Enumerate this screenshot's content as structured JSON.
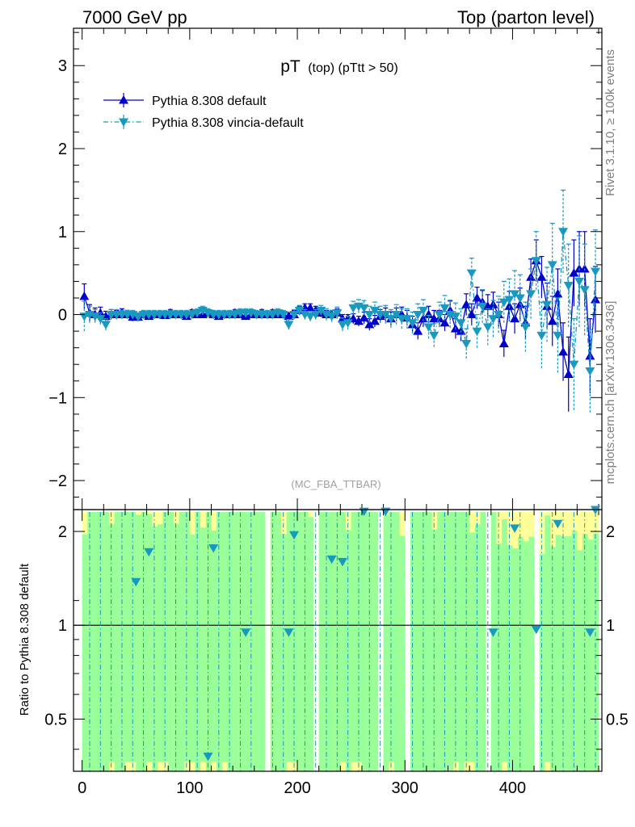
{
  "header": {
    "left": "7000 GeV pp",
    "right": "Top (parton level)"
  },
  "side_labels": {
    "rivet": "Rivet 3.1.10, ≥ 100k events",
    "mcplots": "mcplots.cern.ch [arXiv:1306.3436]"
  },
  "chart_data": [
    {
      "type": "line",
      "panel": "main",
      "title_main": "pT",
      "title_sub": "(top) (pTtt > 50)",
      "watermark": "(MC_FBA_TTBAR)",
      "xlim": [
        -8,
        483
      ],
      "ylim": [
        -2.35,
        3.45
      ],
      "yticks": [
        -2,
        -1,
        0,
        1,
        2,
        3
      ],
      "ytick_labels": [
        "−2",
        "−1",
        "0",
        "1",
        "2",
        "3"
      ],
      "legend_position": "top-left",
      "series": [
        {
          "name": "Pythia 8.308 default",
          "color": "#0000cc",
          "marker": "triangle-up",
          "line": "solid",
          "points": [
            [
              2,
              0.22,
              0.15
            ],
            [
              7,
              0.02,
              0.1
            ],
            [
              12,
              0.0,
              0.08
            ],
            [
              17,
              0.02,
              0.07
            ],
            [
              22,
              -0.02,
              0.06
            ],
            [
              27,
              0.0,
              0.06
            ],
            [
              32,
              0.0,
              0.05
            ],
            [
              37,
              0.02,
              0.05
            ],
            [
              42,
              0.0,
              0.05
            ],
            [
              47,
              -0.03,
              0.05
            ],
            [
              52,
              -0.03,
              0.05
            ],
            [
              57,
              0.0,
              0.04
            ],
            [
              62,
              -0.02,
              0.04
            ],
            [
              67,
              0.0,
              0.04
            ],
            [
              72,
              0.0,
              0.04
            ],
            [
              77,
              -0.01,
              0.04
            ],
            [
              82,
              0.02,
              0.04
            ],
            [
              87,
              0.0,
              0.04
            ],
            [
              92,
              0.0,
              0.04
            ],
            [
              97,
              -0.02,
              0.04
            ],
            [
              102,
              0.02,
              0.04
            ],
            [
              107,
              0.0,
              0.04
            ],
            [
              112,
              0.0,
              0.04
            ],
            [
              117,
              0.02,
              0.04
            ],
            [
              122,
              0.0,
              0.04
            ],
            [
              127,
              -0.02,
              0.04
            ],
            [
              132,
              0.0,
              0.04
            ],
            [
              137,
              0.0,
              0.04
            ],
            [
              142,
              0.02,
              0.04
            ],
            [
              147,
              0.0,
              0.04
            ],
            [
              152,
              -0.02,
              0.04
            ],
            [
              157,
              0.0,
              0.04
            ],
            [
              162,
              0.0,
              0.04
            ],
            [
              167,
              0.02,
              0.04
            ],
            [
              172,
              0.0,
              0.04
            ],
            [
              177,
              0.02,
              0.04
            ],
            [
              182,
              0.0,
              0.04
            ],
            [
              187,
              0.0,
              0.04
            ],
            [
              192,
              -0.02,
              0.04
            ],
            [
              197,
              0.0,
              0.05
            ],
            [
              202,
              0.05,
              0.05
            ],
            [
              207,
              0.08,
              0.05
            ],
            [
              212,
              0.08,
              0.05
            ],
            [
              217,
              0.05,
              0.05
            ],
            [
              222,
              0.02,
              0.05
            ],
            [
              227,
              0.0,
              0.05
            ],
            [
              232,
              0.0,
              0.05
            ],
            [
              237,
              0.02,
              0.05
            ],
            [
              242,
              -0.05,
              0.05
            ],
            [
              247,
              -0.05,
              0.05
            ],
            [
              252,
              -0.05,
              0.06
            ],
            [
              257,
              -0.08,
              0.06
            ],
            [
              262,
              -0.04,
              0.07
            ],
            [
              267,
              -0.12,
              0.07
            ],
            [
              272,
              -0.08,
              0.07
            ],
            [
              277,
              -0.02,
              0.08
            ],
            [
              282,
              0.0,
              0.08
            ],
            [
              287,
              -0.05,
              0.08
            ],
            [
              292,
              0.0,
              0.08
            ],
            [
              297,
              0.0,
              0.09
            ],
            [
              302,
              -0.04,
              0.09
            ],
            [
              307,
              -0.12,
              0.1
            ],
            [
              312,
              -0.2,
              0.1
            ],
            [
              317,
              -0.05,
              0.1
            ],
            [
              322,
              0.0,
              0.1
            ],
            [
              327,
              -0.05,
              0.1
            ],
            [
              332,
              -0.05,
              0.1
            ],
            [
              337,
              -0.1,
              0.1
            ],
            [
              342,
              0.05,
              0.12
            ],
            [
              347,
              -0.17,
              0.12
            ],
            [
              352,
              -0.2,
              0.12
            ],
            [
              357,
              0.12,
              0.13
            ],
            [
              362,
              0.0,
              0.13
            ],
            [
              367,
              0.2,
              0.13
            ],
            [
              372,
              0.15,
              0.14
            ],
            [
              377,
              0.1,
              0.14
            ],
            [
              382,
              0.12,
              0.15
            ],
            [
              387,
              0.0,
              0.15
            ],
            [
              392,
              -0.35,
              0.16
            ],
            [
              397,
              0.1,
              0.18
            ],
            [
              402,
              -0.05,
              0.18
            ],
            [
              407,
              0.12,
              0.2
            ],
            [
              412,
              -0.1,
              0.2
            ],
            [
              417,
              0.45,
              0.22
            ],
            [
              422,
              0.65,
              0.25
            ],
            [
              427,
              0.45,
              0.25
            ],
            [
              432,
              0.1,
              0.28
            ],
            [
              437,
              -0.08,
              0.3
            ],
            [
              442,
              0.25,
              0.3
            ],
            [
              447,
              -0.45,
              0.35
            ],
            [
              452,
              -0.72,
              0.45
            ],
            [
              457,
              0.5,
              0.4
            ],
            [
              462,
              0.55,
              0.45
            ],
            [
              467,
              0.55,
              0.45
            ],
            [
              472,
              -0.5,
              0.45
            ],
            [
              477,
              0.18,
              0.4
            ]
          ]
        },
        {
          "name": "Pythia 8.308 vincia-default",
          "color": "#1899c0",
          "marker": "triangle-down",
          "line": "dashdot",
          "points": [
            [
              2,
              -0.02,
              0.18
            ],
            [
              7,
              0.0,
              0.1
            ],
            [
              12,
              -0.02,
              0.08
            ],
            [
              17,
              -0.05,
              0.07
            ],
            [
              22,
              -0.12,
              0.07
            ],
            [
              27,
              0.0,
              0.06
            ],
            [
              32,
              0.0,
              0.06
            ],
            [
              37,
              0.0,
              0.05
            ],
            [
              42,
              0.0,
              0.05
            ],
            [
              47,
              0.0,
              0.05
            ],
            [
              52,
              -0.03,
              0.05
            ],
            [
              57,
              0.0,
              0.05
            ],
            [
              62,
              0.0,
              0.05
            ],
            [
              67,
              0.0,
              0.05
            ],
            [
              72,
              0.0,
              0.05
            ],
            [
              77,
              0.0,
              0.05
            ],
            [
              82,
              0.0,
              0.05
            ],
            [
              87,
              0.0,
              0.05
            ],
            [
              92,
              0.0,
              0.05
            ],
            [
              97,
              0.0,
              0.05
            ],
            [
              102,
              0.0,
              0.05
            ],
            [
              107,
              0.02,
              0.05
            ],
            [
              112,
              0.05,
              0.05
            ],
            [
              117,
              0.02,
              0.05
            ],
            [
              122,
              0.0,
              0.05
            ],
            [
              127,
              0.0,
              0.05
            ],
            [
              132,
              0.0,
              0.05
            ],
            [
              137,
              0.0,
              0.05
            ],
            [
              142,
              0.0,
              0.05
            ],
            [
              147,
              0.02,
              0.05
            ],
            [
              152,
              0.02,
              0.05
            ],
            [
              157,
              0.02,
              0.05
            ],
            [
              162,
              0.0,
              0.05
            ],
            [
              167,
              0.0,
              0.05
            ],
            [
              172,
              0.0,
              0.05
            ],
            [
              177,
              0.0,
              0.05
            ],
            [
              182,
              0.02,
              0.05
            ],
            [
              187,
              0.0,
              0.05
            ],
            [
              192,
              -0.12,
              0.06
            ],
            [
              197,
              0.0,
              0.06
            ],
            [
              202,
              0.05,
              0.06
            ],
            [
              207,
              0.0,
              0.06
            ],
            [
              212,
              -0.02,
              0.06
            ],
            [
              217,
              0.0,
              0.06
            ],
            [
              222,
              0.05,
              0.06
            ],
            [
              227,
              0.0,
              0.07
            ],
            [
              232,
              -0.02,
              0.07
            ],
            [
              237,
              0.02,
              0.07
            ],
            [
              242,
              -0.12,
              0.08
            ],
            [
              247,
              -0.1,
              0.08
            ],
            [
              252,
              0.08,
              0.08
            ],
            [
              257,
              0.1,
              0.08
            ],
            [
              262,
              0.08,
              0.09
            ],
            [
              267,
              0.0,
              0.1
            ],
            [
              272,
              0.05,
              0.1
            ],
            [
              277,
              0.0,
              0.1
            ],
            [
              282,
              0.0,
              0.11
            ],
            [
              287,
              -0.05,
              0.11
            ],
            [
              292,
              0.0,
              0.12
            ],
            [
              297,
              -0.05,
              0.12
            ],
            [
              302,
              -0.05,
              0.12
            ],
            [
              307,
              -0.1,
              0.13
            ],
            [
              312,
              0.0,
              0.13
            ],
            [
              317,
              0.05,
              0.13
            ],
            [
              322,
              -0.15,
              0.14
            ],
            [
              327,
              -0.25,
              0.14
            ],
            [
              332,
              0.0,
              0.15
            ],
            [
              337,
              0.08,
              0.15
            ],
            [
              342,
              0.0,
              0.16
            ],
            [
              347,
              -0.02,
              0.16
            ],
            [
              352,
              -0.1,
              0.17
            ],
            [
              357,
              -0.35,
              0.18
            ],
            [
              362,
              0.5,
              0.18
            ],
            [
              367,
              -0.2,
              0.2
            ],
            [
              372,
              0.1,
              0.2
            ],
            [
              377,
              -0.15,
              0.22
            ],
            [
              382,
              -0.05,
              0.22
            ],
            [
              387,
              0.0,
              0.22
            ],
            [
              392,
              0.15,
              0.25
            ],
            [
              397,
              0.18,
              0.25
            ],
            [
              402,
              0.25,
              0.28
            ],
            [
              407,
              0.2,
              0.28
            ],
            [
              412,
              -0.15,
              0.3
            ],
            [
              417,
              0.25,
              0.3
            ],
            [
              422,
              0.65,
              0.35
            ],
            [
              427,
              -0.25,
              0.4
            ],
            [
              432,
              0.12,
              0.45
            ],
            [
              437,
              0.6,
              0.5
            ],
            [
              442,
              -0.25,
              0.45
            ],
            [
              447,
              1.0,
              0.5
            ],
            [
              452,
              0.35,
              0.5
            ],
            [
              457,
              -0.6,
              0.55
            ],
            [
              462,
              0.4,
              0.55
            ],
            [
              467,
              0.3,
              0.55
            ],
            [
              472,
              -0.68,
              0.5
            ],
            [
              477,
              0.52,
              0.5
            ]
          ]
        }
      ]
    },
    {
      "type": "line",
      "panel": "ratio",
      "ylabel": "Ratio to Pythia 8.308 default",
      "log_y": true,
      "ylim": [
        0.34,
        2.35
      ],
      "yticks": [
        0.5,
        1,
        2
      ],
      "ytick_labels": [
        "0.5",
        "1",
        "2"
      ],
      "xlim": [
        -8,
        483
      ],
      "xticks": [
        0,
        100,
        200,
        300,
        400
      ],
      "xtick_labels": [
        "0",
        "100",
        "200",
        "300",
        "400"
      ],
      "reference_line": 1,
      "band_colors": {
        "yellow": "#ffff99",
        "green": "#99ff99"
      },
      "gaps": [
        [
          167,
          172
        ],
        [
          212,
          217
        ],
        [
          272,
          277
        ],
        [
          297,
          302
        ],
        [
          372,
          377
        ],
        [
          417,
          422
        ]
      ],
      "ratio_points": [
        [
          50,
          1.38
        ],
        [
          62,
          1.72
        ],
        [
          117,
          0.38
        ],
        [
          122,
          1.77
        ],
        [
          152,
          0.95
        ],
        [
          192,
          0.95
        ],
        [
          197,
          1.95
        ],
        [
          232,
          1.63
        ],
        [
          242,
          1.6
        ],
        [
          262,
          2.32
        ],
        [
          282,
          2.32
        ],
        [
          382,
          0.95
        ],
        [
          402,
          2.05
        ],
        [
          422,
          0.97
        ],
        [
          442,
          2.12
        ],
        [
          472,
          0.95
        ],
        [
          477,
          2.35
        ]
      ]
    }
  ]
}
